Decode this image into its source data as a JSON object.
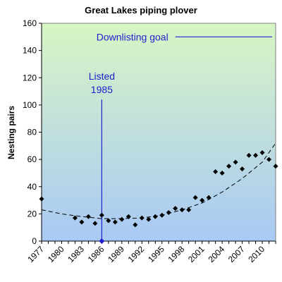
{
  "chart_data": {
    "type": "scatter",
    "title": "Great Lakes piping plover",
    "ylabel": "Nesting pairs",
    "xlabel": "",
    "xlim": [
      1977,
      2012
    ],
    "ylim": [
      0,
      160
    ],
    "y_ticks": [
      0,
      20,
      40,
      60,
      80,
      100,
      120,
      140,
      160
    ],
    "x_ticks": [
      1977,
      1980,
      1983,
      1986,
      1989,
      1992,
      1995,
      1998,
      2001,
      2004,
      2007,
      2010
    ],
    "grid": false,
    "background": "gradient light-green to light-blue",
    "series": [
      {
        "points": [
          [
            1977,
            31
          ],
          [
            1982,
            17
          ],
          [
            1983,
            14
          ],
          [
            1984,
            18
          ],
          [
            1985,
            13
          ],
          [
            1986,
            19
          ],
          [
            1987,
            15
          ],
          [
            1988,
            14
          ],
          [
            1989,
            16
          ],
          [
            1990,
            18
          ],
          [
            1991,
            12
          ],
          [
            1992,
            17
          ],
          [
            1993,
            16
          ],
          [
            1994,
            18
          ],
          [
            1995,
            19
          ],
          [
            1996,
            21
          ],
          [
            1997,
            24
          ],
          [
            1998,
            23
          ],
          [
            1999,
            23
          ],
          [
            2000,
            32
          ],
          [
            2001,
            30
          ],
          [
            2002,
            32
          ],
          [
            2003,
            51
          ],
          [
            2004,
            50
          ],
          [
            2005,
            55
          ],
          [
            2006,
            58
          ],
          [
            2007,
            53
          ],
          [
            2008,
            63
          ],
          [
            2009,
            63
          ],
          [
            2010,
            65
          ],
          [
            2011,
            60
          ],
          [
            2012,
            55
          ]
        ],
        "color": "#000000"
      }
    ],
    "trendline": {
      "style": "dashed",
      "points": [
        [
          1977,
          23
        ],
        [
          1980,
          20
        ],
        [
          1983,
          18
        ],
        [
          1986,
          16.5
        ],
        [
          1989,
          16.5
        ],
        [
          1992,
          17
        ],
        [
          1995,
          19
        ],
        [
          1998,
          23
        ],
        [
          2001,
          28
        ],
        [
          2004,
          36
        ],
        [
          2007,
          46
        ],
        [
          2010,
          58
        ],
        [
          2012,
          72
        ]
      ]
    },
    "annotations": {
      "goal": {
        "label": "Downlisting goal",
        "value": 150,
        "x_from": 1997,
        "x_to": 2012,
        "color": "#1f1fd0"
      },
      "listed": {
        "label_line1": "Listed",
        "label_line2": "1985",
        "x": 1986,
        "y_top": 104,
        "color": "#1f1fd0"
      }
    }
  }
}
